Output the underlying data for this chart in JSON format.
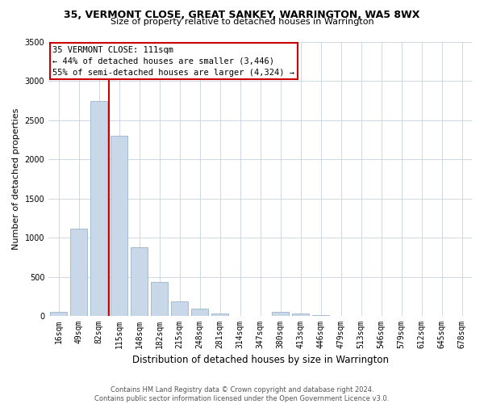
{
  "title": "35, VERMONT CLOSE, GREAT SANKEY, WARRINGTON, WA5 8WX",
  "subtitle": "Size of property relative to detached houses in Warrington",
  "xlabel": "Distribution of detached houses by size in Warrington",
  "ylabel": "Number of detached properties",
  "bar_labels": [
    "16sqm",
    "49sqm",
    "82sqm",
    "115sqm",
    "148sqm",
    "182sqm",
    "215sqm",
    "248sqm",
    "281sqm",
    "314sqm",
    "347sqm",
    "380sqm",
    "413sqm",
    "446sqm",
    "479sqm",
    "513sqm",
    "546sqm",
    "579sqm",
    "612sqm",
    "645sqm",
    "678sqm"
  ],
  "bar_values": [
    55,
    1110,
    2740,
    2300,
    880,
    430,
    185,
    95,
    30,
    0,
    0,
    55,
    30,
    15,
    0,
    0,
    0,
    0,
    0,
    0,
    0
  ],
  "bar_color": "#c8d8e8",
  "bar_edge_color": "#9ab4cc",
  "annotation_title": "35 VERMONT CLOSE: 111sqm",
  "annotation_line1": "← 44% of detached houses are smaller (3,446)",
  "annotation_line2": "55% of semi-detached houses are larger (4,324) →",
  "annotation_box_color": "#ffffff",
  "annotation_box_edge": "#cc0000",
  "property_line_color": "#cc0000",
  "ylim": [
    0,
    3500
  ],
  "yticks": [
    0,
    500,
    1000,
    1500,
    2000,
    2500,
    3000,
    3500
  ],
  "footer_line1": "Contains HM Land Registry data © Crown copyright and database right 2024.",
  "footer_line2": "Contains public sector information licensed under the Open Government Licence v3.0.",
  "bg_color": "#ffffff",
  "grid_color": "#ccd8e4",
  "title_fontsize": 9,
  "subtitle_fontsize": 8,
  "ylabel_fontsize": 8,
  "xlabel_fontsize": 8.5,
  "tick_fontsize": 7,
  "annot_fontsize": 7.5,
  "footer_fontsize": 6
}
